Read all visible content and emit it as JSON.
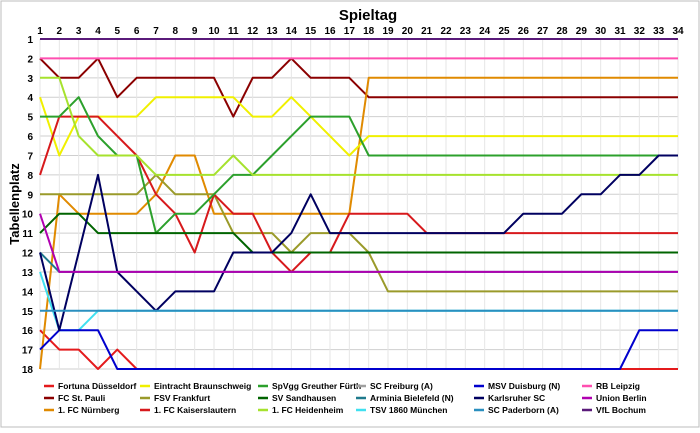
{
  "chart_data": {
    "type": "line",
    "title": "Spieltag",
    "ylabel": "Tabellenplatz",
    "xlabel": "",
    "x": [
      1,
      2,
      3,
      4,
      5,
      6,
      7,
      8,
      9,
      10,
      11,
      12,
      13,
      14,
      15,
      16,
      17,
      18,
      19,
      20,
      21,
      22,
      23,
      24,
      25,
      26,
      27,
      28,
      29,
      30,
      31,
      32,
      33,
      34
    ],
    "y_ticks": [
      1,
      2,
      3,
      4,
      5,
      6,
      7,
      8,
      9,
      10,
      11,
      12,
      13,
      14,
      15,
      16,
      17,
      18
    ],
    "ylim": [
      1,
      18
    ],
    "y_inverted": true,
    "grid": true,
    "legend_position": "bottom",
    "series": [
      {
        "name": "Fortuna Düsseldorf",
        "color": "#e41a1c",
        "values": [
          16,
          17,
          17,
          18,
          17,
          18,
          18,
          18,
          18,
          18,
          18,
          18,
          18,
          18,
          18,
          18,
          18,
          18,
          18,
          18,
          18,
          18,
          18,
          18,
          18,
          18,
          18,
          18,
          18,
          18,
          18,
          18,
          18,
          18
        ]
      },
      {
        "name": "FC St. Pauli",
        "color": "#8b0000",
        "values": [
          2,
          3,
          3,
          2,
          4,
          3,
          3,
          3,
          3,
          3,
          5,
          3,
          3,
          2,
          3,
          3,
          3,
          4,
          4,
          4,
          4,
          4,
          4,
          4,
          4,
          4,
          4,
          4,
          4,
          4,
          4,
          4,
          4,
          4
        ]
      },
      {
        "name": "1. FC Nürnberg",
        "color": "#e08a00",
        "values": [
          18,
          9,
          10,
          10,
          10,
          10,
          9,
          7,
          7,
          10,
          10,
          10,
          10,
          10,
          10,
          10,
          10,
          3,
          3,
          3,
          3,
          3,
          3,
          3,
          3,
          3,
          3,
          3,
          3,
          3,
          3,
          3,
          3,
          3
        ]
      },
      {
        "name": "Eintracht Braunschweig",
        "color": "#f0f000",
        "values": [
          4,
          7,
          5,
          5,
          5,
          5,
          4,
          4,
          4,
          4,
          4,
          5,
          5,
          4,
          5,
          6,
          7,
          6,
          6,
          6,
          6,
          6,
          6,
          6,
          6,
          6,
          6,
          6,
          6,
          6,
          6,
          6,
          6,
          6
        ]
      },
      {
        "name": "FSV Frankfurt",
        "color": "#9a9a2a",
        "values": [
          9,
          9,
          9,
          9,
          9,
          9,
          8,
          9,
          9,
          9,
          11,
          11,
          11,
          12,
          11,
          11,
          11,
          12,
          14,
          14,
          14,
          14,
          14,
          14,
          14,
          14,
          14,
          14,
          14,
          14,
          14,
          14,
          14,
          14
        ]
      },
      {
        "name": "1. FC Kaiserslautern",
        "color": "#d7191c",
        "values": [
          8,
          5,
          5,
          5,
          6,
          7,
          9,
          10,
          12,
          9,
          10,
          10,
          12,
          13,
          12,
          12,
          10,
          10,
          10,
          10,
          11,
          11,
          11,
          11,
          11,
          11,
          11,
          11,
          11,
          11,
          11,
          11,
          11,
          11
        ]
      },
      {
        "name": "SpVgg Greuther Fürth",
        "color": "#2ca02c",
        "values": [
          5,
          5,
          4,
          6,
          7,
          7,
          11,
          10,
          10,
          9,
          8,
          8,
          7,
          6,
          5,
          5,
          5,
          7,
          7,
          7,
          7,
          7,
          7,
          7,
          7,
          7,
          7,
          7,
          7,
          7,
          7,
          7,
          7,
          7
        ]
      },
      {
        "name": "SV Sandhausen",
        "color": "#006400",
        "values": [
          11,
          10,
          10,
          11,
          11,
          11,
          11,
          11,
          11,
          11,
          11,
          12,
          12,
          12,
          12,
          12,
          12,
          12,
          12,
          12,
          12,
          12,
          12,
          12,
          12,
          12,
          12,
          12,
          12,
          12,
          12,
          12,
          12,
          12
        ]
      },
      {
        "name": "1. FC Heidenheim",
        "color": "#a6e22e",
        "values": [
          3,
          3,
          6,
          7,
          7,
          7,
          8,
          8,
          8,
          8,
          7,
          8,
          8,
          8,
          8,
          8,
          8,
          8,
          8,
          8,
          8,
          8,
          8,
          8,
          8,
          8,
          8,
          8,
          8,
          8,
          8,
          8,
          8,
          8
        ]
      },
      {
        "name": "SC Freiburg (A)",
        "color": "#a0a0a0",
        "values": [
          1,
          1,
          1,
          1,
          1,
          1,
          1,
          1,
          1,
          1,
          1,
          1,
          1,
          1,
          1,
          1,
          1,
          1,
          1,
          1,
          1,
          1,
          1,
          1,
          1,
          1,
          1,
          1,
          1,
          1,
          1,
          1,
          1,
          1
        ]
      },
      {
        "name": "Arminia Bielefeld (N)",
        "color": "#1f7a8c",
        "values": [
          12,
          13,
          13,
          13,
          13,
          13,
          13,
          13,
          13,
          13,
          13,
          13,
          13,
          13,
          13,
          13,
          13,
          13,
          13,
          13,
          13,
          13,
          13,
          13,
          13,
          13,
          13,
          13,
          13,
          13,
          13,
          13,
          13,
          13
        ]
      },
      {
        "name": "TSV 1860 München",
        "color": "#40e0f0",
        "values": [
          13,
          16,
          16,
          15,
          15,
          15,
          15,
          15,
          15,
          15,
          15,
          15,
          15,
          15,
          15,
          15,
          15,
          15,
          15,
          15,
          15,
          15,
          15,
          15,
          15,
          15,
          15,
          15,
          15,
          15,
          15,
          15,
          15,
          15
        ]
      },
      {
        "name": "MSV Duisburg (N)",
        "color": "#0000cd",
        "values": [
          17,
          16,
          16,
          16,
          18,
          18,
          18,
          18,
          18,
          18,
          18,
          18,
          18,
          18,
          18,
          18,
          18,
          18,
          18,
          18,
          18,
          18,
          18,
          18,
          18,
          18,
          18,
          18,
          18,
          18,
          18,
          16,
          16,
          16
        ]
      },
      {
        "name": "Karlsruher SC",
        "color": "#000060",
        "values": [
          12,
          16,
          12,
          8,
          13,
          14,
          15,
          14,
          14,
          14,
          12,
          12,
          12,
          11,
          9,
          11,
          11,
          11,
          11,
          11,
          11,
          11,
          11,
          11,
          11,
          10,
          10,
          10,
          9,
          9,
          8,
          8,
          7,
          7
        ]
      },
      {
        "name": "SC Paderborn (A)",
        "color": "#2a8fbf",
        "values": [
          15,
          15,
          15,
          15,
          15,
          15,
          15,
          15,
          15,
          15,
          15,
          15,
          15,
          15,
          15,
          15,
          15,
          15,
          15,
          15,
          15,
          15,
          15,
          15,
          15,
          15,
          15,
          15,
          15,
          15,
          15,
          15,
          15,
          15
        ]
      },
      {
        "name": "RB Leipzig",
        "color": "#ff4fb0",
        "values": [
          2,
          2,
          2,
          2,
          2,
          2,
          2,
          2,
          2,
          2,
          2,
          2,
          2,
          2,
          2,
          2,
          2,
          2,
          2,
          2,
          2,
          2,
          2,
          2,
          2,
          2,
          2,
          2,
          2,
          2,
          2,
          2,
          2,
          2
        ]
      },
      {
        "name": "Union Berlin",
        "color": "#b000b0",
        "values": [
          10,
          13,
          13,
          13,
          13,
          13,
          13,
          13,
          13,
          13,
          13,
          13,
          13,
          13,
          13,
          13,
          13,
          13,
          13,
          13,
          13,
          13,
          13,
          13,
          13,
          13,
          13,
          13,
          13,
          13,
          13,
          13,
          13,
          13
        ]
      },
      {
        "name": "VfL Bochum",
        "color": "#5a1a7a",
        "values": [
          1,
          1,
          1,
          1,
          1,
          1,
          1,
          1,
          1,
          1,
          1,
          1,
          1,
          1,
          1,
          1,
          1,
          1,
          1,
          1,
          1,
          1,
          1,
          1,
          1,
          1,
          1,
          1,
          1,
          1,
          1,
          1,
          1,
          1
        ]
      }
    ]
  }
}
